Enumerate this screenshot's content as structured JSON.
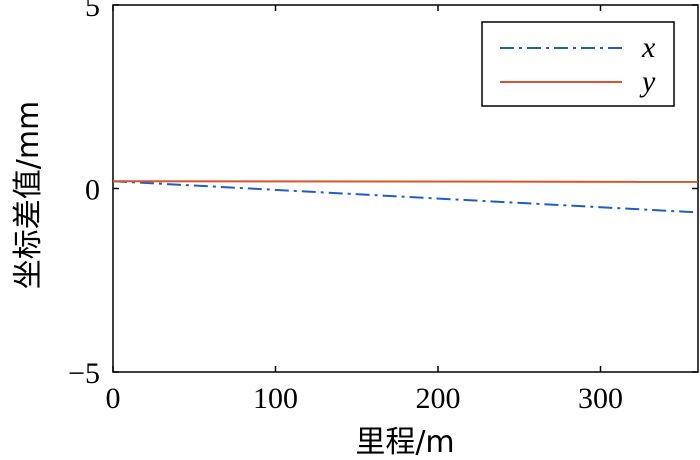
{
  "chart_data": {
    "type": "line",
    "title": "",
    "xlabel": "里程/m",
    "ylabel": "坐标差值/mm",
    "xlim": [
      0,
      360
    ],
    "ylim": [
      -5,
      5
    ],
    "xticks": [
      0,
      100,
      200,
      300
    ],
    "xtick_labels": [
      "0",
      "100",
      "200",
      "300"
    ],
    "yticks": [
      -5,
      0,
      5
    ],
    "ytick_labels": [
      "−5",
      "0",
      "5"
    ],
    "grid": false,
    "legend_position": "top-right",
    "series": [
      {
        "name": "x",
        "color": "#1f5fbf",
        "line_style": "dash-dot",
        "x": [
          0,
          360
        ],
        "y": [
          0.2,
          -0.65
        ]
      },
      {
        "name": "y",
        "color": "#d9532b",
        "line_style": "solid",
        "x": [
          0,
          360
        ],
        "y": [
          0.2,
          0.18
        ]
      }
    ]
  }
}
